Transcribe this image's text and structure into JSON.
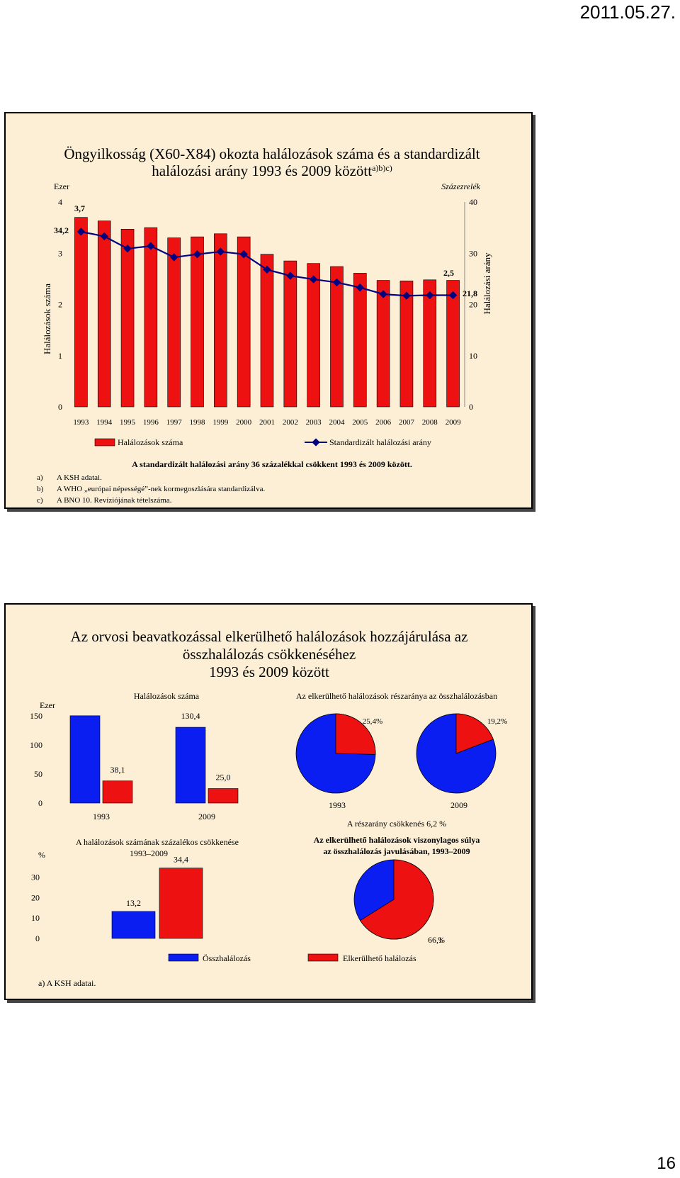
{
  "page": {
    "date": "2011.05.27.",
    "page_number": "16"
  },
  "slide1": {
    "title_line1": "Öngyilkosság (X60-X84) okozta halálozások száma és a standardizált",
    "title_line2": "halálozási arány 1993 és 2009 között",
    "title_sup": "a)b)c)",
    "left_unit": "Ezer",
    "right_unit": "Százezrelék",
    "left_axis_label": "Halálozások száma",
    "right_axis_label": "Halálozási arány",
    "legend_bar": "Halálozások száma",
    "legend_line": "Standardizált halálozási arány",
    "note": "A standardizált halálozási arány 36 százalékkal csökkent 1993 és 2009 között.",
    "footnotes": [
      {
        "key": "a)",
        "text": "A KSH adatai."
      },
      {
        "key": "b)",
        "text": "A WHO „európai népességé”-nek kormegoszlására standardizálva."
      },
      {
        "key": "c)",
        "text": "A BNO 10. Revíziójának tételszáma."
      }
    ],
    "labels": {
      "first_bar": "3,7",
      "last_bar": "2,5",
      "first_line": "34,2",
      "last_line": "21,8"
    }
  },
  "slide2": {
    "title_line1": "Az orvosi beavatkozással elkerülhető halálozások hozzájárulása az",
    "title_line2": "összhalálozás csökkenéséhez",
    "title_line3": "1993 és 2009 között",
    "bar_title": "Halálozások száma",
    "bar_unit": "Ezer",
    "pie_title": "Az elkerülhető halálozások részaránya az összhalálozásban",
    "pie_note": "A részarány csökkenés 6,2 %",
    "pct_title_line1": "A halálozások számának százalékos csökkenése",
    "pct_title_line2": "1993–2009",
    "pct_unit": "%",
    "share_title_line1": "Az elkerülhető halálozások viszonylagos súlya",
    "share_title_line2": "az összhalálozás javulásában, 1993–2009",
    "share_unit": "%",
    "legend_total": "Összhalálozás",
    "legend_avoidable": "Elkerülhető halálozás",
    "footnote": "a) A KSH adatai."
  },
  "chart_data": [
    {
      "type": "bar+line",
      "categories": [
        "1993",
        "1994",
        "1995",
        "1996",
        "1997",
        "1998",
        "1999",
        "2000",
        "2001",
        "2002",
        "2003",
        "2004",
        "2005",
        "2006",
        "2007",
        "2008",
        "2009"
      ],
      "series": [
        {
          "name": "Halálozások száma",
          "axis": "left",
          "values": [
            3.7,
            3.63,
            3.47,
            3.5,
            3.3,
            3.32,
            3.38,
            3.32,
            2.98,
            2.85,
            2.8,
            2.74,
            2.61,
            2.47,
            2.46,
            2.48,
            2.47
          ]
        },
        {
          "name": "Standardizált halálozási arány",
          "axis": "right",
          "values": [
            34.2,
            33.3,
            30.9,
            31.4,
            29.2,
            29.8,
            30.3,
            29.8,
            26.8,
            25.6,
            24.9,
            24.3,
            23.3,
            22.0,
            21.7,
            21.8,
            21.8
          ]
        }
      ],
      "ylim_left": [
        0,
        4
      ],
      "yticks_left": [
        0,
        1,
        2,
        3,
        4
      ],
      "ylim_right": [
        0,
        40
      ],
      "yticks_right": [
        0,
        10,
        20,
        30,
        40
      ],
      "data_labels": {
        "first_bar": "3,7",
        "last_bar": "2,5",
        "first_line": "34,2",
        "last_line": "21,8"
      },
      "colors": {
        "bar": "#ee1111",
        "line": "#000080"
      }
    },
    {
      "type": "bar",
      "categories": [
        "1993",
        "2009"
      ],
      "series": [
        {
          "name": "Összhalálozás",
          "values": [
            150.2,
            130.4
          ],
          "labels": [
            "",
            "130,4"
          ]
        },
        {
          "name": "Elkerülhető halálozás",
          "values": [
            38.1,
            25.0
          ],
          "labels": [
            "38,1",
            "25,0"
          ]
        }
      ],
      "ylim": [
        0,
        150
      ],
      "yticks": [
        0,
        50,
        100,
        150
      ],
      "colors": {
        "total": "#0b1ef2",
        "avoidable": "#ee1111"
      }
    },
    {
      "type": "pie",
      "categories": [
        "1993",
        "2009"
      ],
      "values": [
        25.4,
        19.2
      ],
      "labels": [
        "25,4%",
        "19,2%"
      ],
      "colors": {
        "avoidable": "#ee1111",
        "rest": "#0b1ef2"
      }
    },
    {
      "type": "bar",
      "series": [
        {
          "name": "Összhalálozás",
          "value": 13.2,
          "label": "13,2"
        },
        {
          "name": "Elkerülhető halálozás",
          "value": 34.4,
          "label": "34,4"
        }
      ],
      "ylim": [
        0,
        35
      ],
      "yticks": [
        0,
        10,
        20,
        30
      ]
    },
    {
      "type": "pie",
      "values": [
        66.1,
        33.9
      ],
      "labels": [
        "66,1",
        ""
      ],
      "colors": [
        "#ee1111",
        "#0b1ef2"
      ]
    }
  ]
}
